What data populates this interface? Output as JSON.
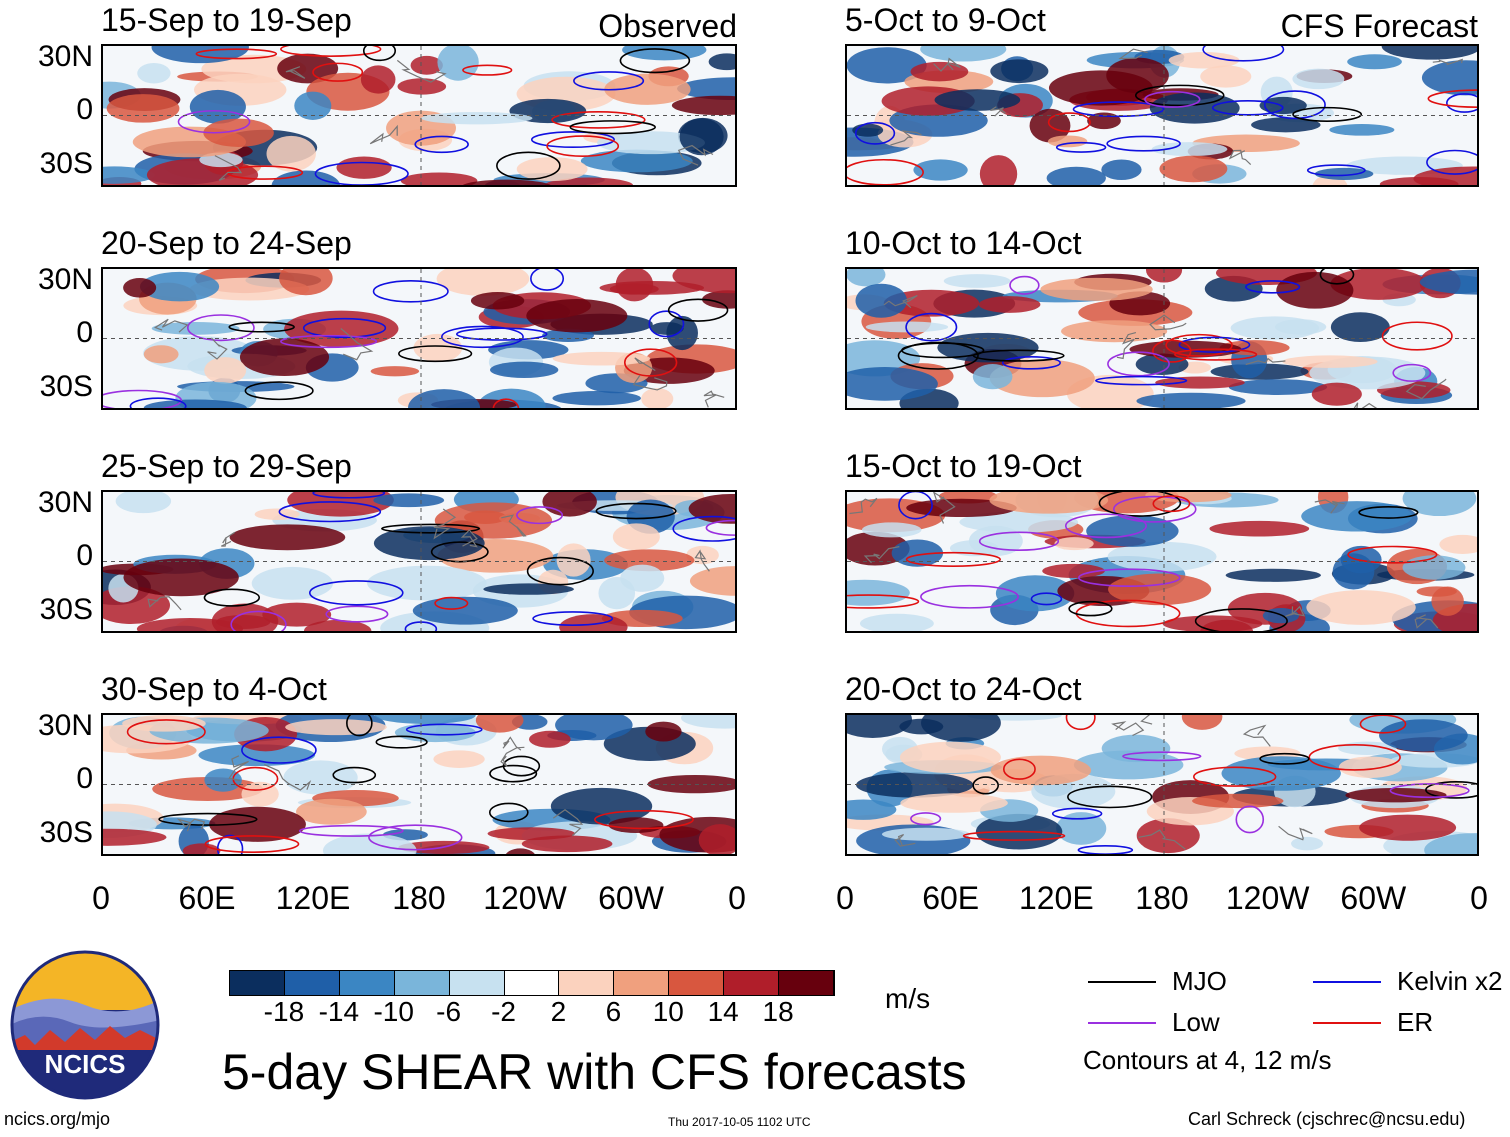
{
  "figure": {
    "title": "5-day SHEAR with CFS forecasts",
    "site": "ncics.org/mjo",
    "timestamp": "Thu 2017-10-05 1102 UTC",
    "author": "Carl Schreck (cjschrec@ncsu.edu)",
    "logo_text": "NCICS"
  },
  "columns": {
    "observed_label": "Observed",
    "forecast_label": "CFS Forecast"
  },
  "chart_data": {
    "type": "heatmap",
    "variable": "Vertical wind shear anomaly",
    "units": "m/s",
    "lat_ticks": [
      "30N",
      "0",
      "30S"
    ],
    "lon_ticks": [
      "0",
      "60E",
      "120E",
      "180",
      "120W",
      "60W",
      "0"
    ],
    "panels": {
      "observed": [
        {
          "period": "15-Sep to 19-Sep"
        },
        {
          "period": "20-Sep to 24-Sep"
        },
        {
          "period": "25-Sep to 29-Sep"
        },
        {
          "period": "30-Sep to 4-Oct"
        }
      ],
      "forecast": [
        {
          "period": "5-Oct to 9-Oct"
        },
        {
          "period": "10-Oct to 14-Oct"
        },
        {
          "period": "15-Oct to 19-Oct"
        },
        {
          "period": "20-Oct to 24-Oct"
        }
      ]
    },
    "colorbar": {
      "levels": [
        "-18",
        "-14",
        "-10",
        "-6",
        "-2",
        "2",
        "6",
        "10",
        "14",
        "18"
      ],
      "colors": [
        "#0b2e5e",
        "#1f5fa8",
        "#3b86c3",
        "#7ab5da",
        "#c7e1f0",
        "#ffffff",
        "#fbd2be",
        "#f0a07e",
        "#d8573f",
        "#b01e2a",
        "#67000d"
      ],
      "units": "m/s"
    },
    "contour_legend": [
      {
        "label": "MJO",
        "color": "#000000"
      },
      {
        "label": "Kelvin x2",
        "color": "#1010e0"
      },
      {
        "label": "Low",
        "color": "#9a30e0"
      },
      {
        "label": "ER",
        "color": "#e01010"
      }
    ],
    "contour_note": "Contours at 4, 12 m/s"
  }
}
